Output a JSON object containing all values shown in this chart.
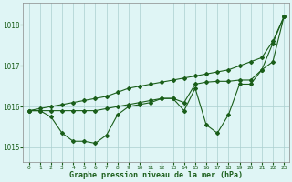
{
  "x": [
    0,
    1,
    2,
    3,
    4,
    5,
    6,
    7,
    8,
    9,
    10,
    11,
    12,
    13,
    14,
    15,
    16,
    17,
    18,
    19,
    20,
    21,
    22,
    23
  ],
  "line_diagonal": [
    1015.9,
    1015.95,
    1016.0,
    1016.05,
    1016.1,
    1016.15,
    1016.2,
    1016.25,
    1016.35,
    1016.45,
    1016.5,
    1016.55,
    1016.6,
    1016.65,
    1016.7,
    1016.75,
    1016.8,
    1016.85,
    1016.9,
    1017.0,
    1017.1,
    1017.2,
    1017.6,
    1018.2
  ],
  "line_flat": [
    1015.9,
    1015.9,
    1015.9,
    1015.9,
    1015.9,
    1015.9,
    1015.9,
    1015.95,
    1016.0,
    1016.05,
    1016.1,
    1016.15,
    1016.2,
    1016.2,
    1016.1,
    1016.55,
    1016.6,
    1016.62,
    1016.62,
    1016.65,
    1016.65,
    1016.9,
    1017.1,
    1018.2
  ],
  "line_dip": [
    1015.9,
    1015.9,
    1015.75,
    1015.35,
    1015.15,
    1015.15,
    1015.1,
    1015.3,
    1015.8,
    1016.0,
    1016.05,
    1016.1,
    1016.2,
    1016.2,
    1015.9,
    1016.45,
    1015.55,
    1015.35,
    1015.8,
    1016.55,
    1016.55,
    1016.9,
    1017.55,
    1018.2
  ],
  "bg_color": "#dff5f5",
  "line_color": "#1a5e1a",
  "grid_color": "#aacfcf",
  "ylabel_values": [
    1015,
    1016,
    1017,
    1018
  ],
  "ylim": [
    1014.65,
    1018.55
  ],
  "xlim": [
    -0.5,
    23.5
  ],
  "xlabel": "Graphe pression niveau de la mer (hPa)"
}
